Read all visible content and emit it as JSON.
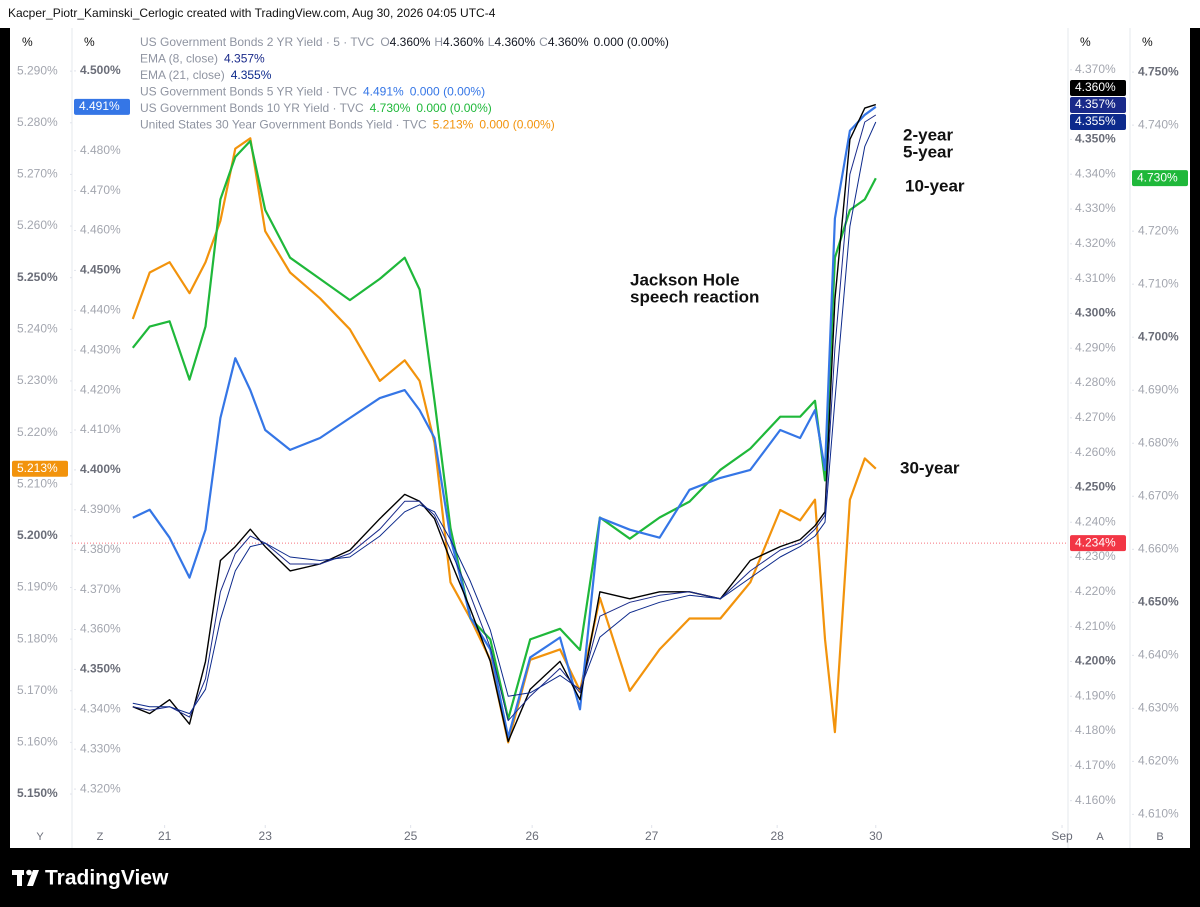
{
  "chart_data": {
    "type": "line",
    "caption": "Kacper_Piotr_Kaminski_Cerlogic created with TradingView.com, Aug 30, 2026 04:05 UTC-4",
    "brand": "TradingView",
    "x": [
      6.1,
      7.8,
      9.8,
      11.8,
      13.4,
      14.9,
      16.4,
      17.9,
      19.4,
      21.9,
      24.9,
      27.9,
      30.9,
      33.4,
      34.9,
      36.4,
      38.0,
      40.0,
      42.0,
      43.8,
      46.0,
      49.0,
      51.0,
      53.0,
      56.0,
      59.0,
      62.0,
      65.1,
      68.1,
      71.1,
      73.1,
      74.6,
      75.6,
      76.6,
      78.1,
      79.6,
      80.7
    ],
    "xlim": [
      0,
      100
    ],
    "xticks": [
      {
        "value": 9.3,
        "label": "21"
      },
      {
        "value": 19.4,
        "label": "23"
      },
      {
        "value": 34.0,
        "label": "25"
      },
      {
        "value": 46.2,
        "label": "26"
      },
      {
        "value": 58.2,
        "label": "27"
      },
      {
        "value": 70.8,
        "label": "28"
      },
      {
        "value": 80.7,
        "label": "30"
      },
      {
        "value": 99.4,
        "label": "Sep"
      }
    ],
    "y_axes": [
      {
        "id": "Y",
        "header": "%",
        "ylim": [
          5.144,
          5.297
        ],
        "yticks": [
          {
            "value": 5.29,
            "label": "5.290%"
          },
          {
            "value": 5.28,
            "label": "5.280%"
          },
          {
            "value": 5.27,
            "label": "5.270%"
          },
          {
            "value": 5.26,
            "label": "5.260%"
          },
          {
            "value": 5.25,
            "label": "5.250%"
          },
          {
            "value": 5.24,
            "label": "5.240%"
          },
          {
            "value": 5.23,
            "label": "5.230%"
          },
          {
            "value": 5.22,
            "label": "5.220%"
          },
          {
            "value": 5.21,
            "label": "5.210%"
          },
          {
            "value": 5.2,
            "label": "5.200%"
          },
          {
            "value": 5.19,
            "label": "5.190%"
          },
          {
            "value": 5.18,
            "label": "5.180%"
          },
          {
            "value": 5.17,
            "label": "5.170%"
          },
          {
            "value": 5.16,
            "label": "5.160%"
          },
          {
            "value": 5.15,
            "label": "5.150%"
          }
        ]
      },
      {
        "id": "Z",
        "header": "%",
        "ylim": [
          4.311,
          4.509
        ],
        "yticks": [
          {
            "value": 4.5,
            "label": "4.500%"
          },
          {
            "value": 4.49,
            "label": "4.490%"
          },
          {
            "value": 4.48,
            "label": "4.480%"
          },
          {
            "value": 4.47,
            "label": "4.470%"
          },
          {
            "value": 4.46,
            "label": "4.460%"
          },
          {
            "value": 4.45,
            "label": "4.450%"
          },
          {
            "value": 4.44,
            "label": "4.440%"
          },
          {
            "value": 4.43,
            "label": "4.430%"
          },
          {
            "value": 4.42,
            "label": "4.420%"
          },
          {
            "value": 4.41,
            "label": "4.410%"
          },
          {
            "value": 4.4,
            "label": "4.400%"
          },
          {
            "value": 4.39,
            "label": "4.390%"
          },
          {
            "value": 4.38,
            "label": "4.380%"
          },
          {
            "value": 4.37,
            "label": "4.370%"
          },
          {
            "value": 4.36,
            "label": "4.360%"
          },
          {
            "value": 4.35,
            "label": "4.350%"
          },
          {
            "value": 4.34,
            "label": "4.340%"
          },
          {
            "value": 4.33,
            "label": "4.330%"
          },
          {
            "value": 4.32,
            "label": "4.320%"
          }
        ]
      },
      {
        "id": "A",
        "header": "%",
        "ylim": [
          4.153,
          4.38
        ],
        "yticks": [
          {
            "value": 4.37,
            "label": "4.370%"
          },
          {
            "value": 4.36,
            "label": "4.360%"
          },
          {
            "value": 4.35,
            "label": "4.350%"
          },
          {
            "value": 4.34,
            "label": "4.340%"
          },
          {
            "value": 4.33,
            "label": "4.330%"
          },
          {
            "value": 4.32,
            "label": "4.320%"
          },
          {
            "value": 4.31,
            "label": "4.310%"
          },
          {
            "value": 4.3,
            "label": "4.300%"
          },
          {
            "value": 4.29,
            "label": "4.290%"
          },
          {
            "value": 4.28,
            "label": "4.280%"
          },
          {
            "value": 4.27,
            "label": "4.270%"
          },
          {
            "value": 4.26,
            "label": "4.260%"
          },
          {
            "value": 4.25,
            "label": "4.250%"
          },
          {
            "value": 4.24,
            "label": "4.240%"
          },
          {
            "value": 4.23,
            "label": "4.230%"
          },
          {
            "value": 4.22,
            "label": "4.220%"
          },
          {
            "value": 4.21,
            "label": "4.210%"
          },
          {
            "value": 4.2,
            "label": "4.200%"
          },
          {
            "value": 4.19,
            "label": "4.190%"
          },
          {
            "value": 4.18,
            "label": "4.180%"
          },
          {
            "value": 4.17,
            "label": "4.170%"
          },
          {
            "value": 4.16,
            "label": "4.160%"
          }
        ]
      },
      {
        "id": "B",
        "header": "%",
        "ylim": [
          4.608,
          4.757
        ],
        "yticks": [
          {
            "value": 4.75,
            "label": "4.750%"
          },
          {
            "value": 4.74,
            "label": "4.740%"
          },
          {
            "value": 4.73,
            "label": "4.730%"
          },
          {
            "value": 4.72,
            "label": "4.720%"
          },
          {
            "value": 4.71,
            "label": "4.710%"
          },
          {
            "value": 4.7,
            "label": "4.700%"
          },
          {
            "value": 4.69,
            "label": "4.690%"
          },
          {
            "value": 4.68,
            "label": "4.680%"
          },
          {
            "value": 4.67,
            "label": "4.670%"
          },
          {
            "value": 4.66,
            "label": "4.660%"
          },
          {
            "value": 4.65,
            "label": "4.650%"
          },
          {
            "value": 4.64,
            "label": "4.640%"
          },
          {
            "value": 4.63,
            "label": "4.630%"
          },
          {
            "value": 4.62,
            "label": "4.620%"
          },
          {
            "value": 4.61,
            "label": "4.610%"
          }
        ]
      }
    ],
    "series": [
      {
        "name": "United States 30 Year Government Bonds Yield · TVC",
        "axis": "Y",
        "color": "#f2930c",
        "last_label": "5.213%",
        "change": "0.000 (0.00%)",
        "values": [
          5.242,
          5.251,
          5.253,
          5.247,
          5.253,
          5.261,
          5.275,
          5.277,
          5.259,
          5.251,
          5.246,
          5.24,
          5.23,
          5.234,
          5.23,
          5.218,
          5.191,
          5.184,
          5.176,
          5.16,
          5.176,
          5.178,
          5.17,
          5.188,
          5.17,
          5.178,
          5.184,
          5.184,
          5.191,
          5.205,
          5.203,
          5.207,
          5.18,
          5.162,
          5.207,
          5.215,
          5.213
        ]
      },
      {
        "name": "US Government Bonds 10 YR Yield · TVC",
        "axis": "B",
        "color": "#1fb83a",
        "last_label": "4.730%",
        "change": "0.000 (0.00%)",
        "values": [
          4.698,
          4.702,
          4.703,
          4.692,
          4.702,
          4.726,
          4.734,
          4.737,
          4.724,
          4.715,
          4.711,
          4.707,
          4.711,
          4.715,
          4.709,
          4.688,
          4.664,
          4.647,
          4.643,
          4.628,
          4.643,
          4.645,
          4.641,
          4.666,
          4.662,
          4.666,
          4.669,
          4.675,
          4.679,
          4.685,
          4.685,
          4.688,
          4.673,
          4.715,
          4.724,
          4.726,
          4.73
        ]
      },
      {
        "name": "US Government Bonds 5 YR Yield · TVC",
        "axis": "Z",
        "color": "#3576e6",
        "last_label": "4.491%",
        "change": "0.000 (0.00%)",
        "values": [
          4.388,
          4.39,
          4.383,
          4.373,
          4.385,
          4.413,
          4.428,
          4.42,
          4.41,
          4.405,
          4.408,
          4.413,
          4.418,
          4.42,
          4.415,
          4.408,
          4.383,
          4.363,
          4.355,
          4.333,
          4.353,
          4.358,
          4.34,
          4.388,
          4.385,
          4.383,
          4.395,
          4.398,
          4.4,
          4.41,
          4.408,
          4.415,
          4.4,
          4.463,
          4.485,
          4.489,
          4.491
        ]
      },
      {
        "name": "US Government Bonds 2 YR Yield · 5 · TVC",
        "axis": "A",
        "color": "#000000",
        "last_label": "4.360%",
        "change": "0.000 (0.00%)",
        "ohlc": [
          {
            "key": "O",
            "value": "4.360%"
          },
          {
            "key": "H",
            "value": "4.360%"
          },
          {
            "key": "L",
            "value": "4.360%"
          },
          {
            "key": "C",
            "value": "4.360%"
          }
        ],
        "values": [
          4.187,
          4.185,
          4.189,
          4.182,
          4.2,
          4.229,
          4.233,
          4.238,
          4.233,
          4.226,
          4.228,
          4.232,
          4.241,
          4.248,
          4.246,
          4.241,
          4.229,
          4.215,
          4.2,
          4.177,
          4.192,
          4.2,
          4.189,
          4.22,
          4.218,
          4.22,
          4.22,
          4.218,
          4.229,
          4.233,
          4.235,
          4.239,
          4.243,
          4.304,
          4.35,
          4.359,
          4.36
        ]
      },
      {
        "name": "EMA (8, close)",
        "axis": "A",
        "color": "#1a2a8a",
        "last_label": "4.357%",
        "values": [
          4.187,
          4.186,
          4.187,
          4.184,
          4.195,
          4.22,
          4.231,
          4.236,
          4.234,
          4.228,
          4.228,
          4.231,
          4.238,
          4.246,
          4.246,
          4.242,
          4.232,
          4.219,
          4.204,
          4.183,
          4.19,
          4.198,
          4.191,
          4.213,
          4.217,
          4.219,
          4.22,
          4.218,
          4.226,
          4.232,
          4.234,
          4.238,
          4.242,
          4.29,
          4.34,
          4.355,
          4.357
        ]
      },
      {
        "name": "EMA (21, close)",
        "axis": "A",
        "color": "#0d2a8c",
        "last_label": "4.355%",
        "values": [
          4.188,
          4.187,
          4.187,
          4.185,
          4.192,
          4.212,
          4.226,
          4.233,
          4.234,
          4.23,
          4.229,
          4.23,
          4.236,
          4.243,
          4.245,
          4.243,
          4.235,
          4.223,
          4.209,
          4.19,
          4.191,
          4.196,
          4.192,
          4.207,
          4.214,
          4.217,
          4.219,
          4.218,
          4.224,
          4.23,
          4.233,
          4.236,
          4.24,
          4.275,
          4.325,
          4.348,
          4.355
        ]
      }
    ],
    "legend_order": [
      3,
      4,
      5,
      2,
      1,
      0
    ],
    "price_line": {
      "axis": "A",
      "value": 4.234,
      "label": "4.234%",
      "color": "#f23645"
    },
    "annotations": [
      "2-year",
      "5-year",
      "10-year",
      "30-year",
      "Jackson Hole",
      "speech reaction"
    ]
  }
}
